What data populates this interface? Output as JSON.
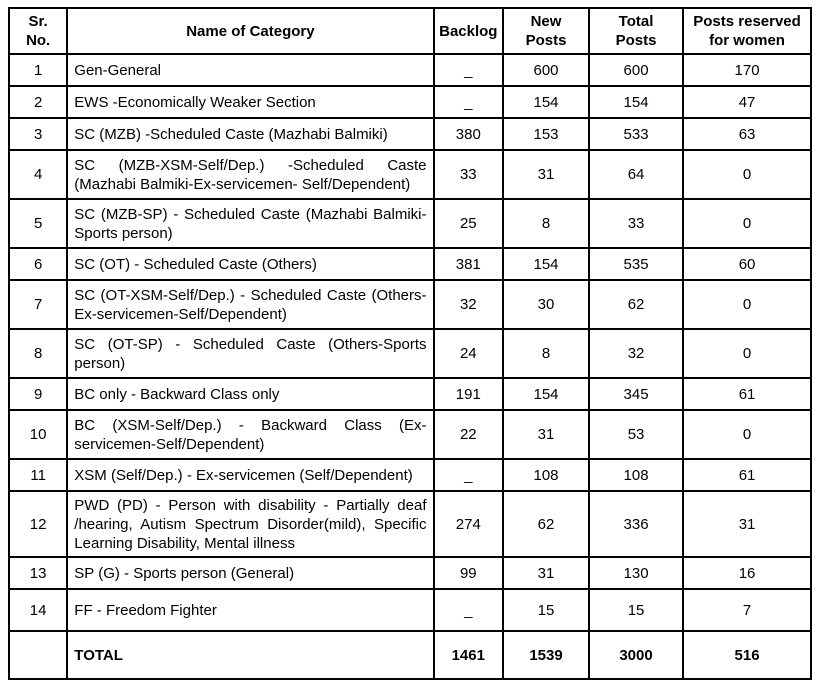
{
  "table": {
    "headers": {
      "sr": "Sr.\nNo.",
      "name": "Name of Category",
      "backlog": "Backlog",
      "new_posts": "New\nPosts",
      "total_posts": "Total\nPosts",
      "women": "Posts reserved\nfor women"
    },
    "rows": [
      {
        "sr": "1",
        "name": "Gen-General",
        "backlog": "_",
        "new_posts": "600",
        "total_posts": "600",
        "women": "170"
      },
      {
        "sr": "2",
        "name": "EWS -Economically Weaker Section",
        "backlog": "_",
        "new_posts": "154",
        "total_posts": "154",
        "women": "47"
      },
      {
        "sr": "3",
        "name": "SC (MZB) -Scheduled Caste (Mazhabi Balmiki)",
        "backlog": "380",
        "new_posts": "153",
        "total_posts": "533",
        "women": "63"
      },
      {
        "sr": "4",
        "name": "SC (MZB-XSM-Self/Dep.) -Scheduled Caste (Mazhabi Balmiki-Ex-servicemen- Self/Dependent)",
        "backlog": "33",
        "new_posts": "31",
        "total_posts": "64",
        "women": "0"
      },
      {
        "sr": "5",
        "name": "SC (MZB-SP) - Scheduled Caste (Mazhabi Balmiki-Sports person)",
        "backlog": "25",
        "new_posts": "8",
        "total_posts": "33",
        "women": "0"
      },
      {
        "sr": "6",
        "name": "SC (OT) - Scheduled Caste (Others)",
        "backlog": "381",
        "new_posts": "154",
        "total_posts": "535",
        "women": "60"
      },
      {
        "sr": "7",
        "name": "SC (OT-XSM-Self/Dep.) - Scheduled Caste (Others-Ex-servicemen-Self/Dependent)",
        "backlog": "32",
        "new_posts": "30",
        "total_posts": "62",
        "women": "0"
      },
      {
        "sr": "8",
        "name": "SC (OT-SP) - Scheduled Caste (Others-Sports person)",
        "backlog": "24",
        "new_posts": "8",
        "total_posts": "32",
        "women": "0"
      },
      {
        "sr": "9",
        "name": "BC only - Backward Class only",
        "backlog": "191",
        "new_posts": "154",
        "total_posts": "345",
        "women": "61"
      },
      {
        "sr": "10",
        "name": "BC (XSM-Self/Dep.) - Backward Class (Ex-servicemen-Self/Dependent)",
        "backlog": "22",
        "new_posts": "31",
        "total_posts": "53",
        "women": "0"
      },
      {
        "sr": "11",
        "name": "XSM (Self/Dep.) - Ex-servicemen (Self/Dependent)",
        "backlog": "_",
        "new_posts": "108",
        "total_posts": "108",
        "women": "61"
      },
      {
        "sr": "12",
        "name": "PWD (PD) - Person with disability - Partially deaf /hearing, Autism Spectrum Disorder(mild), Specific Learning Disability, Mental illness",
        "backlog": "274",
        "new_posts": "62",
        "total_posts": "336",
        "women": "31"
      },
      {
        "sr": "13",
        "name": "SP (G) - Sports person (General)",
        "backlog": "99",
        "new_posts": "31",
        "total_posts": "130",
        "women": "16"
      },
      {
        "sr": "14",
        "name": "FF - Freedom Fighter",
        "backlog": "_",
        "new_posts": "15",
        "total_posts": "15",
        "women": "7"
      }
    ],
    "total_row": {
      "sr": "",
      "label": "TOTAL",
      "backlog": "1461",
      "new_posts": "1539",
      "total_posts": "3000",
      "women": "516"
    }
  }
}
